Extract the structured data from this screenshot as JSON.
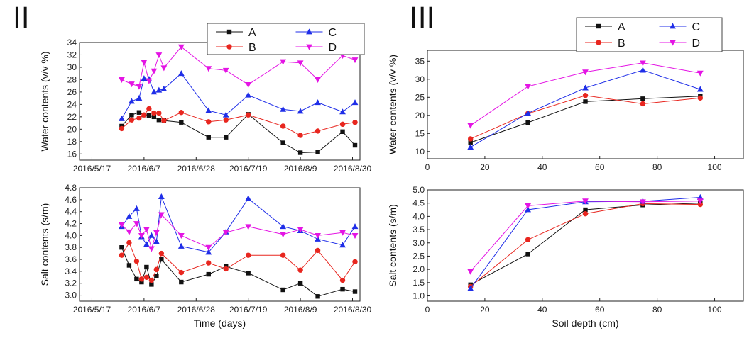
{
  "panels": [
    {
      "label": "II"
    },
    {
      "label": "III"
    }
  ],
  "colors": {
    "A": "#111111",
    "B": "#e8261f",
    "C": "#1f2ee8",
    "D": "#e414e4",
    "axis": "#222222"
  },
  "chart_data": [
    {
      "type": "line",
      "panel": "II",
      "ylabel": "Water contents (v/v %)",
      "xlabel": "",
      "x_type": "date",
      "xlim": [
        "2016-05-12",
        "2016-09-02"
      ],
      "xticks": [
        "2016-05-17",
        "2016-06-07",
        "2016-06-28",
        "2016-07-19",
        "2016-08-09",
        "2016-08-30"
      ],
      "xtick_labels": [
        "2016/5/17",
        "2016/6/7",
        "2016/6/28",
        "2016/7/19",
        "2016/8/9",
        "2016/8/30"
      ],
      "ylim": [
        15,
        34
      ],
      "yticks": [
        16,
        18,
        20,
        22,
        24,
        26,
        28,
        30,
        32,
        34
      ],
      "legend": {
        "position": "top-right",
        "layout": "2x2"
      },
      "series": [
        {
          "name": "A",
          "marker": "square",
          "color": "#111111",
          "x": [
            "2016-05-29",
            "2016-06-02",
            "2016-06-05",
            "2016-06-07",
            "2016-06-09",
            "2016-06-11",
            "2016-06-13",
            "2016-06-15",
            "2016-06-22",
            "2016-07-03",
            "2016-07-10",
            "2016-07-19",
            "2016-08-02",
            "2016-08-09",
            "2016-08-16",
            "2016-08-26",
            "2016-08-31"
          ],
          "y": [
            20.5,
            22.3,
            22.7,
            22.3,
            22.2,
            22.0,
            21.5,
            21.4,
            21.1,
            18.7,
            18.7,
            22.4,
            17.8,
            16.2,
            16.3,
            19.6,
            17.4
          ]
        },
        {
          "name": "B",
          "marker": "circle",
          "color": "#e8261f",
          "x": [
            "2016-05-29",
            "2016-06-02",
            "2016-06-05",
            "2016-06-07",
            "2016-06-09",
            "2016-06-11",
            "2016-06-13",
            "2016-06-15",
            "2016-06-22",
            "2016-07-03",
            "2016-07-10",
            "2016-07-19",
            "2016-08-02",
            "2016-08-09",
            "2016-08-16",
            "2016-08-26",
            "2016-08-31"
          ],
          "y": [
            20.1,
            21.5,
            21.8,
            22.3,
            23.3,
            22.6,
            22.6,
            21.4,
            22.7,
            21.2,
            21.5,
            22.3,
            20.5,
            19.0,
            19.7,
            20.8,
            21.1
          ]
        },
        {
          "name": "C",
          "marker": "triangle-up",
          "color": "#1f2ee8",
          "x": [
            "2016-05-29",
            "2016-06-02",
            "2016-06-05",
            "2016-06-07",
            "2016-06-09",
            "2016-06-11",
            "2016-06-13",
            "2016-06-15",
            "2016-06-22",
            "2016-07-03",
            "2016-07-10",
            "2016-07-19",
            "2016-08-02",
            "2016-08-09",
            "2016-08-16",
            "2016-08-26",
            "2016-08-31"
          ],
          "y": [
            21.7,
            24.5,
            25.0,
            28.2,
            28.1,
            26.0,
            26.3,
            26.5,
            29.0,
            23.0,
            22.3,
            25.5,
            23.2,
            22.9,
            24.3,
            22.8,
            24.3
          ]
        },
        {
          "name": "D",
          "marker": "triangle-down",
          "color": "#e414e4",
          "x": [
            "2016-05-29",
            "2016-06-02",
            "2016-06-05",
            "2016-06-07",
            "2016-06-09",
            "2016-06-11",
            "2016-06-13",
            "2016-06-15",
            "2016-06-22",
            "2016-07-03",
            "2016-07-10",
            "2016-07-19",
            "2016-08-02",
            "2016-08-09",
            "2016-08-16",
            "2016-08-26",
            "2016-08-31"
          ],
          "y": [
            28.0,
            27.3,
            26.9,
            30.8,
            27.8,
            29.4,
            32.0,
            29.9,
            33.3,
            29.8,
            29.5,
            27.2,
            30.9,
            30.7,
            28.0,
            31.9,
            31.2
          ]
        }
      ]
    },
    {
      "type": "line",
      "panel": "II",
      "ylabel": "Salt contents (s/m)",
      "xlabel": "Time (days)",
      "x_type": "date",
      "xlim": [
        "2016-05-12",
        "2016-09-02"
      ],
      "xticks": [
        "2016-05-17",
        "2016-06-07",
        "2016-06-28",
        "2016-07-19",
        "2016-08-09",
        "2016-08-30"
      ],
      "xtick_labels": [
        "2016/5/17",
        "2016/6/7",
        "2016/6/28",
        "2016/7/19",
        "2016/8/9",
        "2016/8/30"
      ],
      "ylim": [
        2.9,
        4.8
      ],
      "yticks": [
        3.0,
        3.2,
        3.4,
        3.6,
        3.8,
        4.0,
        4.2,
        4.4,
        4.6,
        4.8
      ],
      "ytick_labels": [
        "3.0",
        "3.2",
        "3.4",
        "3.6",
        "3.8",
        "4.0",
        "4.2",
        "4.4",
        "4.6",
        "4.8"
      ],
      "series": [
        {
          "name": "A",
          "marker": "square",
          "color": "#111111",
          "x": [
            "2016-05-29",
            "2016-06-01",
            "2016-06-04",
            "2016-06-06",
            "2016-06-08",
            "2016-06-10",
            "2016-06-12",
            "2016-06-14",
            "2016-06-22",
            "2016-07-03",
            "2016-07-10",
            "2016-07-19",
            "2016-08-02",
            "2016-08-09",
            "2016-08-16",
            "2016-08-26",
            "2016-08-31"
          ],
          "y": [
            3.8,
            3.5,
            3.27,
            3.22,
            3.47,
            3.18,
            3.32,
            3.6,
            3.22,
            3.35,
            3.48,
            3.37,
            3.09,
            3.2,
            2.98,
            3.1,
            3.06
          ]
        },
        {
          "name": "B",
          "marker": "circle",
          "color": "#e8261f",
          "x": [
            "2016-05-29",
            "2016-06-01",
            "2016-06-04",
            "2016-06-06",
            "2016-06-08",
            "2016-06-10",
            "2016-06-12",
            "2016-06-14",
            "2016-06-22",
            "2016-07-03",
            "2016-07-10",
            "2016-07-19",
            "2016-08-02",
            "2016-08-09",
            "2016-08-16",
            "2016-08-26",
            "2016-08-31"
          ],
          "y": [
            3.67,
            3.88,
            3.57,
            3.27,
            3.3,
            3.25,
            3.43,
            3.7,
            3.38,
            3.54,
            3.44,
            3.67,
            3.67,
            3.42,
            3.75,
            3.25,
            3.56
          ]
        },
        {
          "name": "C",
          "marker": "triangle-up",
          "color": "#1f2ee8",
          "x": [
            "2016-05-29",
            "2016-06-01",
            "2016-06-04",
            "2016-06-06",
            "2016-06-08",
            "2016-06-10",
            "2016-06-12",
            "2016-06-14",
            "2016-06-22",
            "2016-07-03",
            "2016-07-10",
            "2016-07-19",
            "2016-08-02",
            "2016-08-09",
            "2016-08-16",
            "2016-08-26",
            "2016-08-31"
          ],
          "y": [
            4.15,
            4.32,
            4.45,
            3.98,
            3.85,
            4.0,
            3.9,
            4.65,
            3.82,
            3.72,
            4.06,
            4.62,
            4.15,
            4.08,
            3.94,
            3.84,
            4.15
          ]
        },
        {
          "name": "D",
          "marker": "triangle-down",
          "color": "#e414e4",
          "x": [
            "2016-05-29",
            "2016-06-01",
            "2016-06-04",
            "2016-06-06",
            "2016-06-08",
            "2016-06-10",
            "2016-06-12",
            "2016-06-14",
            "2016-06-22",
            "2016-07-03",
            "2016-07-10",
            "2016-07-19",
            "2016-08-02",
            "2016-08-09",
            "2016-08-16",
            "2016-08-26",
            "2016-08-31"
          ],
          "y": [
            4.18,
            4.06,
            4.2,
            4.0,
            4.1,
            3.78,
            4.05,
            4.35,
            4.0,
            3.8,
            4.05,
            4.15,
            4.02,
            4.1,
            4.0,
            4.05,
            4.0
          ]
        }
      ]
    },
    {
      "type": "line",
      "panel": "III",
      "ylabel": "Water contents (v/v %)",
      "xlabel": "",
      "xlim": [
        0,
        110
      ],
      "xticks": [
        0,
        20,
        40,
        60,
        80,
        100
      ],
      "ylim": [
        8,
        38
      ],
      "yticks": [
        10,
        15,
        20,
        25,
        30,
        35
      ],
      "legend": {
        "position": "top-right",
        "layout": "2x2"
      },
      "series": [
        {
          "name": "A",
          "marker": "square",
          "color": "#111111",
          "x": [
            15,
            35,
            55,
            75,
            95
          ],
          "y": [
            12.5,
            18.0,
            23.8,
            24.6,
            25.3
          ]
        },
        {
          "name": "B",
          "marker": "circle",
          "color": "#e8261f",
          "x": [
            15,
            35,
            55,
            75,
            95
          ],
          "y": [
            13.5,
            20.5,
            25.5,
            23.2,
            24.8
          ]
        },
        {
          "name": "C",
          "marker": "triangle-up",
          "color": "#1f2ee8",
          "x": [
            15,
            35,
            55,
            75,
            95
          ],
          "y": [
            11.2,
            20.6,
            27.6,
            32.5,
            27.2
          ]
        },
        {
          "name": "D",
          "marker": "triangle-down",
          "color": "#e414e4",
          "x": [
            15,
            35,
            55,
            75,
            95
          ],
          "y": [
            17.2,
            28.0,
            32.0,
            34.5,
            31.7
          ]
        }
      ]
    },
    {
      "type": "line",
      "panel": "III",
      "ylabel": "Salt contents (s/m)",
      "xlabel": "Soil depth (cm)",
      "xlim": [
        0,
        110
      ],
      "xticks": [
        0,
        20,
        40,
        60,
        80,
        100
      ],
      "ylim": [
        0.8,
        5.0
      ],
      "yticks": [
        1.0,
        1.5,
        2.0,
        2.5,
        3.0,
        3.5,
        4.0,
        4.5,
        5.0
      ],
      "ytick_labels": [
        "1.0",
        "1.5",
        "2.0",
        "2.5",
        "3.0",
        "3.5",
        "4.0",
        "4.5",
        "5.0"
      ],
      "series": [
        {
          "name": "A",
          "marker": "square",
          "color": "#111111",
          "x": [
            15,
            35,
            55,
            75,
            95
          ],
          "y": [
            1.42,
            2.58,
            4.25,
            4.43,
            4.5
          ]
        },
        {
          "name": "B",
          "marker": "circle",
          "color": "#e8261f",
          "x": [
            15,
            35,
            55,
            75,
            95
          ],
          "y": [
            1.35,
            3.12,
            4.1,
            4.48,
            4.45
          ]
        },
        {
          "name": "C",
          "marker": "triangle-up",
          "color": "#1f2ee8",
          "x": [
            15,
            35,
            55,
            75,
            95
          ],
          "y": [
            1.28,
            4.25,
            4.55,
            4.57,
            4.72
          ]
        },
        {
          "name": "D",
          "marker": "triangle-down",
          "color": "#e414e4",
          "x": [
            15,
            35,
            55,
            75,
            95
          ],
          "y": [
            1.92,
            4.4,
            4.58,
            4.55,
            4.58
          ]
        }
      ]
    }
  ]
}
